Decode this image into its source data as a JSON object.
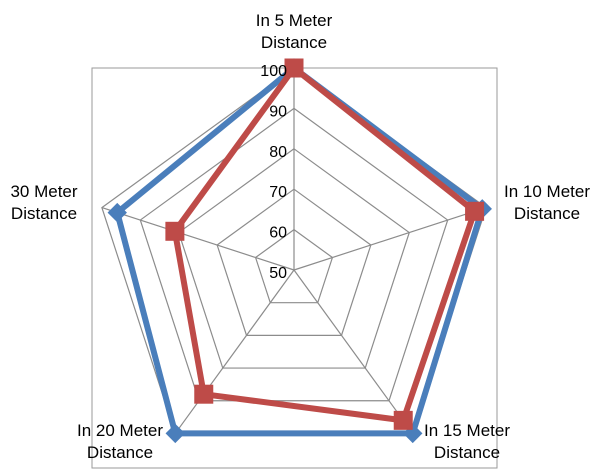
{
  "chart_data": {
    "type": "radar",
    "categories": [
      [
        "In 5 Meter",
        "Distance"
      ],
      [
        "In 10 Meter",
        "Distance"
      ],
      [
        "In 15 Meter",
        "Distance"
      ],
      [
        "In 20 Meter",
        "Distance"
      ],
      [
        "30 Meter",
        "Distance"
      ]
    ],
    "ticks": [
      "50",
      "60",
      "70",
      "80",
      "90",
      "100"
    ],
    "rlim": [
      50,
      100
    ],
    "series": [
      {
        "values": [
          100,
          99,
          100,
          100,
          96
        ],
        "color": "#4A7EBB",
        "marker": "diamond"
      },
      {
        "values": [
          100,
          97,
          96,
          88,
          81
        ],
        "color": "#BE4B48",
        "marker": "square"
      }
    ],
    "grid": true,
    "legend": "none"
  }
}
